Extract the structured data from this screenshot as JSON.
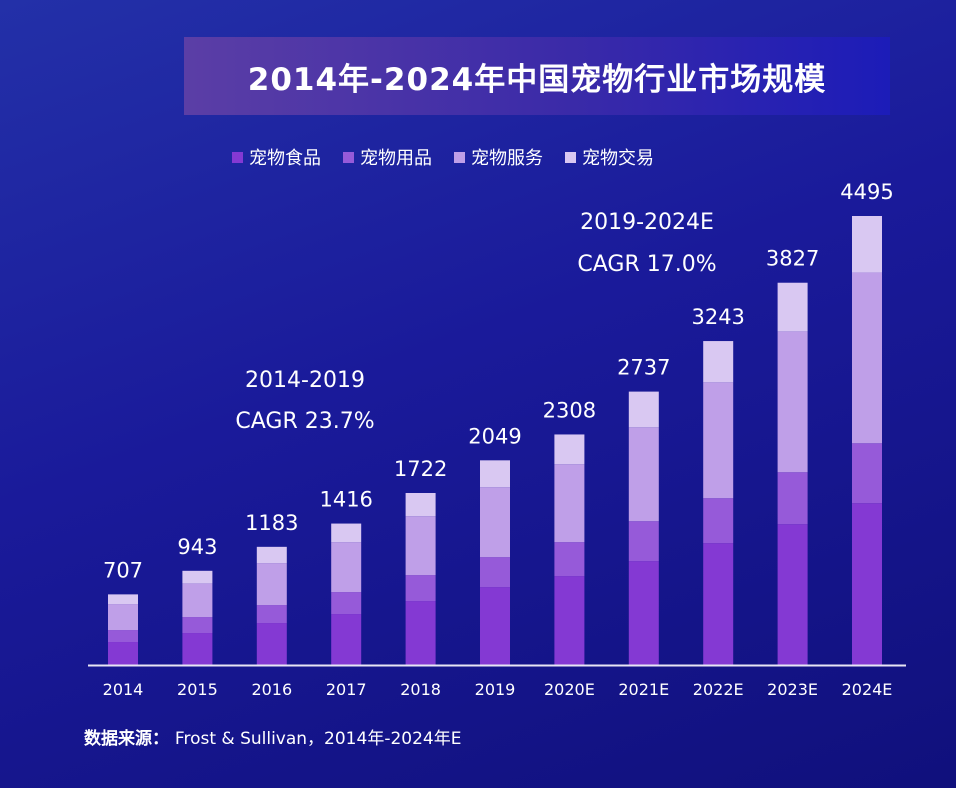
{
  "chart_data": {
    "type": "bar",
    "stacked": true,
    "title": "2014年-2024年中国宠物行业市场规模",
    "categories": [
      "2014",
      "2015",
      "2016",
      "2017",
      "2018",
      "2019",
      "2020E",
      "2021E",
      "2022E",
      "2023E",
      "2024E"
    ],
    "totals": [
      707,
      943,
      1183,
      1416,
      1722,
      2049,
      2308,
      2737,
      3243,
      3827,
      4495
    ],
    "series": [
      {
        "name": "宠物食品",
        "color": "#8439d3",
        "values": [
          230,
          320,
          420,
          510,
          640,
          780,
          890,
          1040,
          1220,
          1410,
          1620
        ]
      },
      {
        "name": "宠物用品",
        "color": "#965ad9",
        "values": [
          120,
          160,
          180,
          220,
          260,
          300,
          340,
          400,
          450,
          520,
          600
        ]
      },
      {
        "name": "宠物服务",
        "color": "#bf9fe8",
        "values": [
          260,
          337,
          420,
          500,
          590,
          700,
          780,
          940,
          1160,
          1410,
          1710
        ]
      },
      {
        "name": "宠物交易",
        "color": "#d9c8f2",
        "values": [
          97,
          126,
          163,
          186,
          232,
          269,
          298,
          357,
          413,
          487,
          565
        ]
      }
    ],
    "annotations": [
      {
        "line1": "2014-2019",
        "line2": "CAGR 23.7%"
      },
      {
        "line1": "2019-2024E",
        "line2": "CAGR 17.0%"
      }
    ],
    "ylim": [
      0,
      4500
    ],
    "grid": false,
    "legend_position": "top",
    "xlabel": "",
    "ylabel": ""
  },
  "source": {
    "label": "数据来源：",
    "text": "Frost & Sullivan，2014年-2024年E"
  }
}
